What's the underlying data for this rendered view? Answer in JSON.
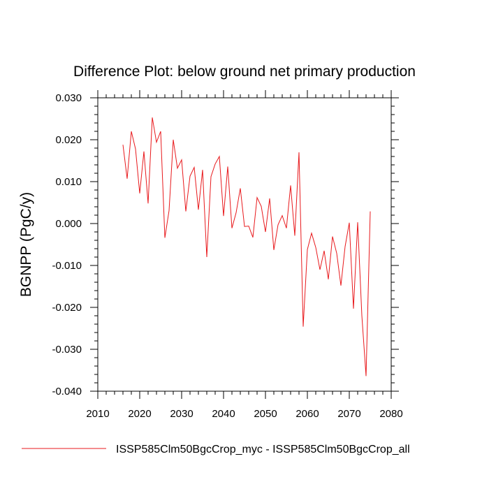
{
  "chart_data": {
    "type": "line",
    "title": "Difference Plot: below ground net primary production",
    "xlabel": "",
    "ylabel": "BGNPP  (PgC/y)",
    "xlim": [
      2010,
      2080
    ],
    "ylim": [
      -0.04,
      0.03
    ],
    "x_ticks": [
      2010,
      2020,
      2030,
      2040,
      2050,
      2060,
      2070,
      2080
    ],
    "x_tick_labels": [
      "2010",
      "2020",
      "2030",
      "2040",
      "2050",
      "2060",
      "2070",
      "2080"
    ],
    "y_ticks": [
      0.03,
      0.02,
      0.01,
      0.0,
      -0.01,
      -0.02,
      -0.03,
      -0.04
    ],
    "y_tick_labels": [
      "0.030",
      "0.020",
      "0.010",
      "0.000",
      "-0.010",
      "-0.020",
      "-0.030",
      "-0.040"
    ],
    "grid": false,
    "legend_position": "bottom",
    "x": [
      2016,
      2017,
      2018,
      2019,
      2020,
      2021,
      2022,
      2023,
      2024,
      2025,
      2026,
      2027,
      2028,
      2029,
      2030,
      2031,
      2032,
      2033,
      2034,
      2035,
      2036,
      2037,
      2038,
      2039,
      2040,
      2041,
      2042,
      2043,
      2044,
      2045,
      2046,
      2047,
      2048,
      2049,
      2050,
      2051,
      2052,
      2053,
      2054,
      2055,
      2056,
      2057,
      2058,
      2059,
      2060,
      2061,
      2062,
      2063,
      2064,
      2065,
      2066,
      2067,
      2068,
      2069,
      2070,
      2071,
      2072,
      2073,
      2074,
      2075
    ],
    "series": [
      {
        "name": "ISSP585Clm50BgcCrop_myc - ISSP585Clm50BgcCrop_all",
        "color": "#e8191c",
        "values": [
          0.0188,
          0.0107,
          0.022,
          0.0178,
          0.0072,
          0.0172,
          0.0048,
          0.0253,
          0.0194,
          0.022,
          -0.0034,
          0.0031,
          0.02,
          0.0132,
          0.0152,
          0.0029,
          0.0113,
          0.0134,
          0.0033,
          0.0128,
          -0.008,
          0.0112,
          0.0142,
          0.016,
          0.0018,
          0.0136,
          -0.0011,
          0.0026,
          0.0084,
          -0.0007,
          -0.0006,
          -0.0033,
          0.0062,
          0.0041,
          -0.002,
          0.006,
          -0.0063,
          -0.0003,
          0.0019,
          -0.0011,
          0.0091,
          -0.0029,
          0.017,
          -0.0246,
          -0.0062,
          -0.0023,
          -0.0057,
          -0.011,
          -0.0065,
          -0.0133,
          -0.0031,
          -0.0071,
          -0.0148,
          -0.0055,
          0.0002,
          -0.0203,
          0.0003,
          -0.022,
          -0.0364,
          0.0029
        ]
      }
    ]
  }
}
